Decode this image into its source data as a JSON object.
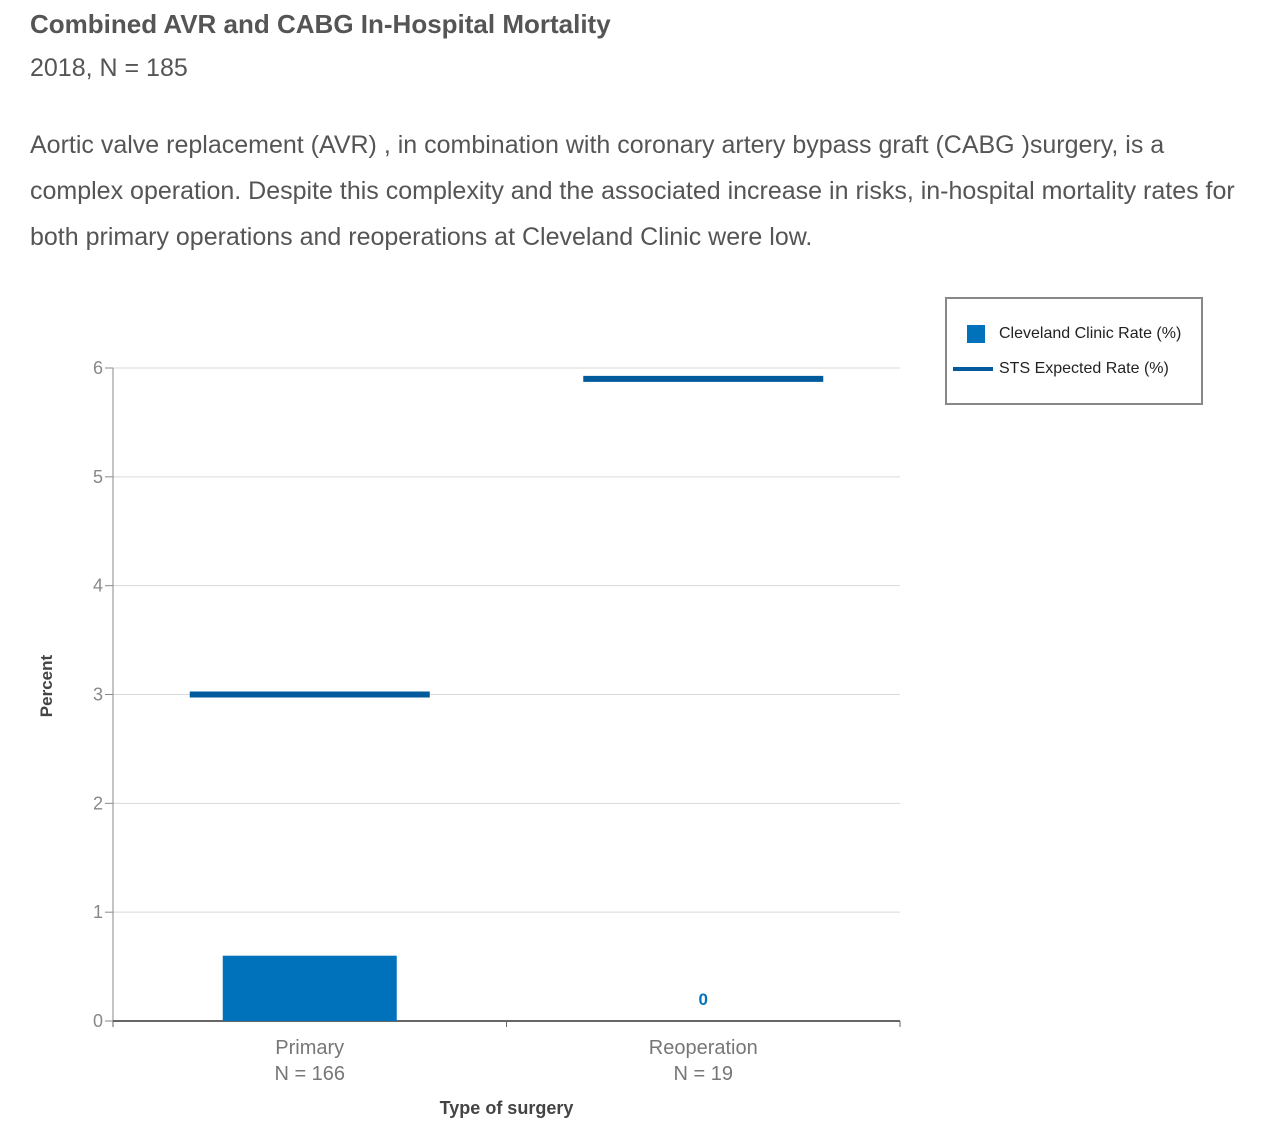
{
  "header": {
    "title": "Combined AVR and CABG In-Hospital Mortality",
    "subtitle": "2018, N = 185",
    "description": "Aortic valve replacement (AVR) , in combination with coronary artery bypass graft (CABG )surgery, is a complex operation. Despite this complexity and the associated increase in risks, in-hospital mortality rates for both primary operations and reoperations at Cleveland Clinic were low."
  },
  "legend": {
    "items": [
      {
        "label": "Cleveland Clinic Rate (%)",
        "color": "#0072bc",
        "kind": "bar"
      },
      {
        "label": "STS Expected Rate (%)",
        "color": "#005a9c",
        "kind": "line"
      }
    ]
  },
  "chart_data": {
    "type": "bar",
    "categories": [
      "Primary",
      "Reoperation"
    ],
    "category_sublabels": [
      "N = 166",
      "N = 19"
    ],
    "series": [
      {
        "name": "Cleveland Clinic Rate (%)",
        "type": "bar",
        "values": [
          0.6,
          0
        ],
        "color": "#0072bc"
      },
      {
        "name": "STS Expected Rate (%)",
        "type": "line-marker",
        "values": [
          3.0,
          5.9
        ],
        "color": "#005a9c"
      }
    ],
    "data_labels": [
      null,
      "0"
    ],
    "xlabel": "Type of surgery",
    "ylabel": "Percent",
    "ylim": [
      0,
      6
    ],
    "yticks": [
      0,
      1,
      2,
      3,
      4,
      5,
      6
    ],
    "grid": true,
    "legend_position": "top-right"
  }
}
